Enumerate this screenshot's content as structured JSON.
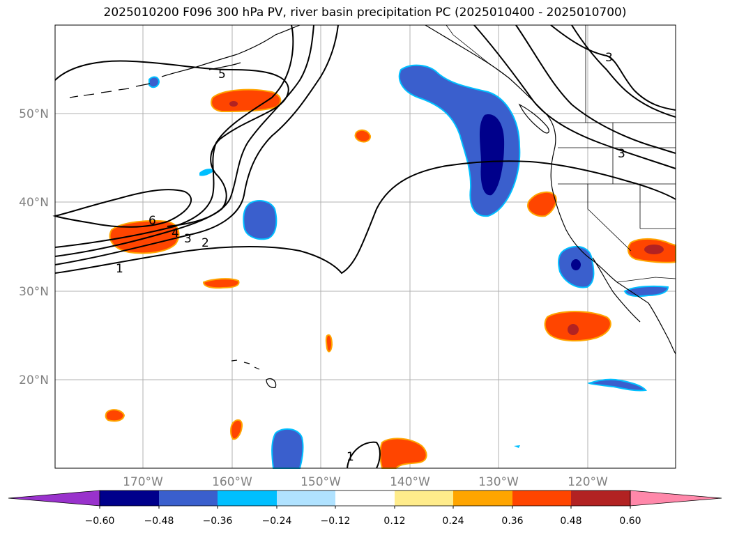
{
  "title": "2025010200 F096 300 hPa PV, river basin precipitation PC (2025010400 - 2025010700)",
  "latitude_labels": [
    "50°N",
    "40°N",
    "30°N",
    "20°N"
  ],
  "longitude_labels": [
    "170°W",
    "160°W",
    "150°W",
    "140°W",
    "130°W",
    "120°W"
  ],
  "pv_contour_labels": [
    "6",
    "5",
    "4",
    "3",
    "2",
    "1",
    "3",
    "3",
    "1"
  ],
  "colorbar": {
    "tick_labels": [
      "−0.60",
      "−0.48",
      "−0.36",
      "−0.24",
      "−0.12",
      "0.12",
      "0.24",
      "0.36",
      "0.48",
      "0.60"
    ],
    "colors": [
      "#9932cc",
      "#00008b",
      "#3a5fcd",
      "#00bfff",
      "#b0e2ff",
      "#ffffff",
      "#ffec8b",
      "#ffa500",
      "#ff4500",
      "#b22222",
      "#ff88aa"
    ]
  },
  "colors": {
    "map_land_outline": "#000000",
    "gridline": "#b0b0b0",
    "axis_label": "#808080"
  }
}
